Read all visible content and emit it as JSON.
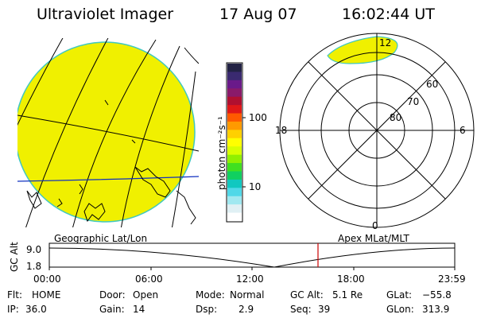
{
  "header": {
    "title": "Ultraviolet Imager",
    "date": "17 Aug 07",
    "time": "16:02:44 UT"
  },
  "colorbar": {
    "unit_label": "photon cm⁻²s⁻¹",
    "ticks": [
      "100",
      "10"
    ],
    "colors": [
      "#222244",
      "#3a2a70",
      "#6a1a8a",
      "#8a1a6a",
      "#b01030",
      "#e01818",
      "#ff5a00",
      "#ff9a00",
      "#ffd000",
      "#ffff00",
      "#d8ff00",
      "#90f000",
      "#40e020",
      "#10d060",
      "#10c8c0",
      "#50d8e8",
      "#a0e8f0",
      "#e0f0f4",
      "#ffffff"
    ]
  },
  "geo_panel": {
    "label": "Geographic Lat/Lon",
    "fill_color": "#f0f000"
  },
  "polar_panel": {
    "label": "Apex MLat/MLT",
    "mlt_labels": {
      "top": "12",
      "left": "18",
      "right": "6",
      "bottom": "0"
    },
    "mlat_labels": [
      "60",
      "70",
      "80"
    ]
  },
  "orbit_plot": {
    "ylabel": "GC Alt",
    "yticks": [
      "9.0",
      "1.8"
    ],
    "xticks": [
      "00:00",
      "06:00",
      "12:00",
      "18:00",
      "23:59"
    ],
    "current_time_color": "#cc0000"
  },
  "info": {
    "flt_label": "Flt:",
    "flt_value": "HOME",
    "ip_label": "IP:",
    "ip_value": "36.0",
    "door_label": "Door:",
    "door_value": "Open",
    "gain_label": "Gain:",
    "gain_value": "14",
    "mode_label": "Mode:",
    "mode_value": "Normal",
    "dsp_label": "Dsp:",
    "dsp_value": "2.9",
    "gcalt_label": "GC Alt:",
    "gcalt_value": "5.1 Re",
    "seq_label": "Seq:",
    "seq_value": "39",
    "glat_label": "GLat:",
    "glat_value": "−55.8",
    "glon_label": "GLon:",
    "glon_value": "313.9"
  }
}
